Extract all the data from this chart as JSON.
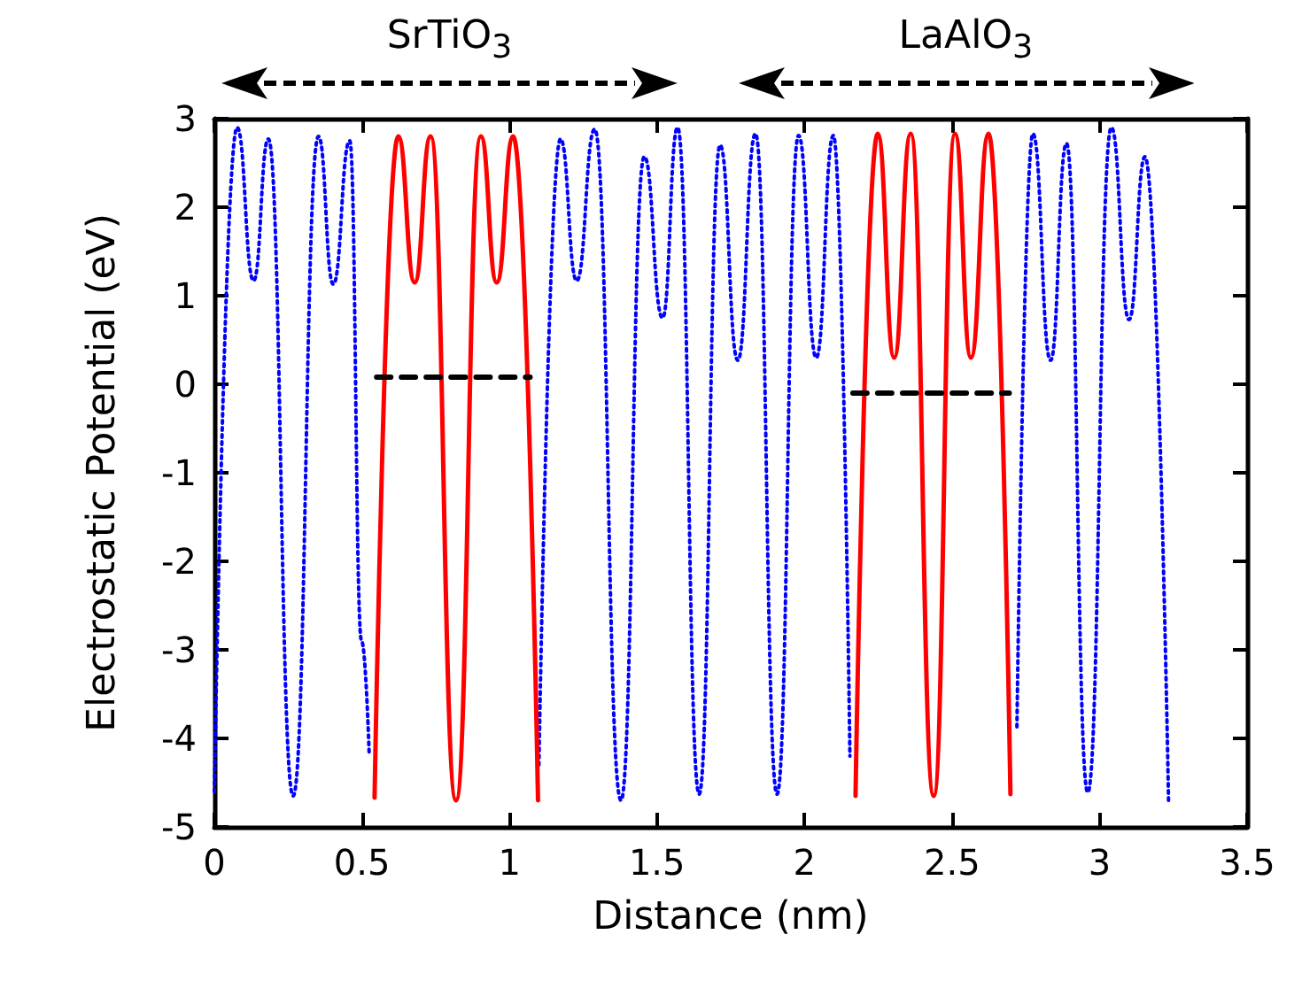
{
  "chart_data": {
    "type": "line",
    "xlabel": "Distance (nm)",
    "ylabel": "Electrostatic Potential (eV)",
    "annotations": [
      "SrTiO$_{3}$",
      "LaAlO$_{3}$"
    ],
    "xlim": [
      0,
      3.5
    ],
    "xticks": [
      0,
      0.5,
      1,
      1.5,
      2,
      2.5,
      3,
      3.5
    ],
    "ylim": [
      -5,
      3
    ],
    "yticks": [
      -5,
      -4,
      -3,
      -2,
      -1,
      0,
      1,
      2,
      3
    ],
    "grid": false,
    "marker": "none",
    "series": [
      {
        "color": "#0000ff",
        "line_style": "dotted",
        "x": [
          0,
          0.077,
          0.133,
          0.183,
          0.267,
          0.353,
          0.403,
          0.459,
          0.499,
          0.525,
          0.81,
          1.1,
          1.173,
          1.228,
          1.289,
          1.378,
          1.457,
          1.519,
          1.57,
          1.643,
          1.714,
          1.774,
          1.834,
          1.907,
          1.98,
          2.04,
          2.098,
          2.154,
          2.44,
          2.72,
          2.774,
          2.834,
          2.888,
          2.96,
          3.04,
          3.1,
          3.154,
          3.234
        ],
        "values": [
          -4.6,
          2.9,
          1.17,
          2.77,
          -4.65,
          2.8,
          1.13,
          2.75,
          -2.9,
          -4.2,
          null,
          -4.3,
          2.77,
          1.17,
          2.88,
          -4.7,
          2.57,
          0.75,
          2.9,
          -4.63,
          2.7,
          0.27,
          2.83,
          -4.63,
          2.81,
          0.3,
          2.81,
          -4.2,
          null,
          -3.87,
          2.83,
          0.27,
          2.72,
          -4.61,
          2.9,
          0.73,
          2.57,
          -4.73
        ]
      },
      {
        "color": "#ff0000",
        "line_style": "solid",
        "x": [
          0.543,
          0.623,
          0.679,
          0.733,
          0.819,
          0.903,
          0.957,
          1.013,
          1.097,
          1.6,
          2.173,
          2.248,
          2.304,
          2.36,
          2.438,
          2.51,
          2.564,
          2.624,
          2.698
        ],
        "values": [
          -4.67,
          2.8,
          1.15,
          2.8,
          -4.7,
          2.8,
          1.15,
          2.8,
          -4.7,
          null,
          -4.65,
          2.83,
          0.3,
          2.83,
          -4.65,
          2.83,
          0.3,
          2.83,
          -4.63
        ]
      },
      {
        "color": "#000000",
        "line_style": "dashed",
        "x": [
          0.55,
          1.07,
          1.6,
          2.164,
          2.694
        ],
        "values": [
          0.08,
          0.08,
          null,
          -0.1,
          -0.1
        ]
      }
    ]
  }
}
